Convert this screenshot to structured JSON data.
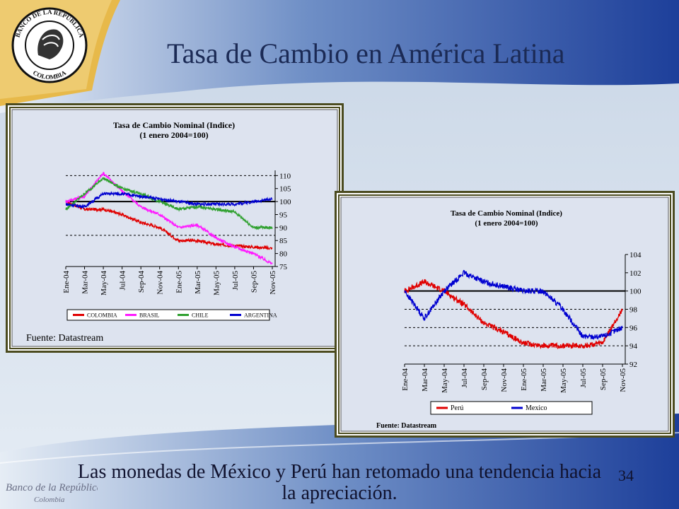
{
  "header": {
    "title": "Tasa de Cambio en América Latina"
  },
  "logo": {
    "seal_text_top": "BANCO DE LA REPÚBLICA",
    "seal_text_bottom": "COLOMBIA",
    "wordmark_line1": "Banco de la República",
    "wordmark_line2": "Colombia"
  },
  "footer": {
    "caption_line1": "Las monedas de México y Perú han retomado una tendencia hacia",
    "caption_line2": "la apreciación.",
    "page_number": "34"
  },
  "colors": {
    "colombia": "#e00000",
    "brasil": "#ff1aff",
    "chile": "#2ea02e",
    "argentina": "#0000d0",
    "peru": "#e00000",
    "mexico": "#0000d0",
    "title": "#1b2a55",
    "frame": "#4b4b1f"
  },
  "chart_data": [
    {
      "type": "line",
      "title": "Tasa de Cambio Nominal (Indice)",
      "subtitle": "(1 enero 2004=100)",
      "source": "Fuente: Datastream",
      "x": [
        "Ene-04",
        "Mar-04",
        "May-04",
        "Jul-04",
        "Sep-04",
        "Nov-04",
        "Ene-05",
        "Mar-05",
        "May-05",
        "Jul-05",
        "Sep-05",
        "Nov-05"
      ],
      "ylim": [
        75,
        112
      ],
      "yticks": [
        "75",
        "80",
        "85",
        "90",
        "95",
        "100",
        "105",
        "110"
      ],
      "reference_lines": [
        100,
        110,
        87
      ],
      "legend_position": "bottom",
      "series": [
        {
          "name": "COLOMBIA",
          "values": [
            100,
            97,
            97,
            95,
            92,
            90,
            85,
            85,
            83.5,
            83,
            82.5,
            82
          ]
        },
        {
          "name": "BRASIL",
          "values": [
            100,
            102,
            111,
            104,
            98,
            95,
            90,
            91,
            86,
            82.5,
            80,
            76
          ]
        },
        {
          "name": "CHILE",
          "values": [
            97,
            103,
            109,
            105,
            103,
            100,
            97,
            98,
            97,
            96,
            90,
            90
          ]
        },
        {
          "name": "ARGENTINA",
          "values": [
            99,
            98,
            103,
            103,
            102,
            101,
            100,
            99,
            99,
            99,
            100,
            101
          ]
        }
      ]
    },
    {
      "type": "line",
      "title": "Tasa de Cambio Nominal (Indice)",
      "subtitle": "(1 enero 2004=100)",
      "source": "Fuente: Datastream",
      "x": [
        "Ene-04",
        "Mar-04",
        "May-04",
        "Jul-04",
        "Sep-04",
        "Nov-04",
        "Ene-05",
        "Mar-05",
        "May-05",
        "Jul-05",
        "Sep-05",
        "Nov-05"
      ],
      "ylim": [
        92,
        104
      ],
      "yticks": [
        "92",
        "94",
        "96",
        "98",
        "100",
        "102",
        "104"
      ],
      "reference_lines": [
        100,
        98,
        96,
        94
      ],
      "legend_position": "bottom",
      "series": [
        {
          "name": "Perú",
          "values": [
            100,
            101,
            100,
            98.5,
            96.5,
            95.5,
            94.3,
            94,
            94,
            94,
            94.3,
            98
          ]
        },
        {
          "name": "Mexico",
          "values": [
            100,
            97,
            100,
            102,
            101,
            100.5,
            100,
            100,
            98,
            95,
            95,
            96
          ]
        }
      ]
    }
  ]
}
